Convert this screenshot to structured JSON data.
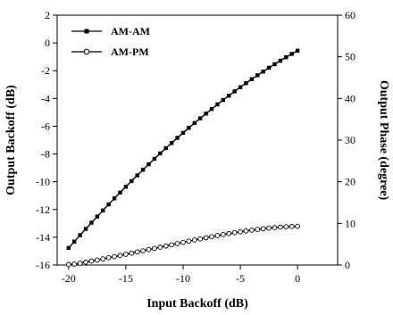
{
  "chart_data": {
    "type": "line",
    "xlabel": "Input Backoff (dB)",
    "ylabel": "Output Backoff (dB)",
    "y2label": "Output Phase (degree)",
    "xlim": [
      -21,
      3.5
    ],
    "ylim": [
      -16,
      2
    ],
    "y2lim": [
      0,
      60
    ],
    "xticks": [
      -20,
      -15,
      -10,
      -5,
      0
    ],
    "yticks": [
      2,
      0,
      -2,
      -4,
      -6,
      -8,
      -10,
      -12,
      -14,
      -16
    ],
    "y2ticks": [
      60,
      50,
      40,
      30,
      20,
      10,
      0
    ],
    "legend_position": "top-left",
    "grid": false,
    "series": [
      {
        "name": "AM-AM",
        "axis": "left",
        "marker": "filled-square",
        "x": [
          -20,
          -19.5,
          -19,
          -18.5,
          -18,
          -17.5,
          -17,
          -16.5,
          -16,
          -15.5,
          -15,
          -14.5,
          -14,
          -13.5,
          -13,
          -12.5,
          -12,
          -11.5,
          -11,
          -10.5,
          -10,
          -9.5,
          -9,
          -8.5,
          -8,
          -7.5,
          -7,
          -6.5,
          -6,
          -5.5,
          -5,
          -4.5,
          -4,
          -3.5,
          -3,
          -2.5,
          -2,
          -1.5,
          -1,
          -0.5,
          0
        ],
        "y": [
          -14.77,
          -14.31,
          -13.85,
          -13.4,
          -12.95,
          -12.51,
          -12.07,
          -11.63,
          -11.2,
          -10.78,
          -10.36,
          -9.95,
          -9.54,
          -9.14,
          -8.74,
          -8.35,
          -7.96,
          -7.58,
          -7.21,
          -6.84,
          -6.48,
          -6.12,
          -5.77,
          -5.43,
          -5.09,
          -4.76,
          -4.43,
          -4.11,
          -3.8,
          -3.49,
          -3.19,
          -2.9,
          -2.61,
          -2.33,
          -2.06,
          -1.79,
          -1.53,
          -1.28,
          -1.03,
          -0.79,
          -0.56
        ]
      },
      {
        "name": "AM-PM",
        "axis": "right",
        "marker": "open-circle",
        "x": [
          -20,
          -19.5,
          -19,
          -18.5,
          -18,
          -17.5,
          -17,
          -16.5,
          -16,
          -15.5,
          -15,
          -14.5,
          -14,
          -13.5,
          -13,
          -12.5,
          -12,
          -11.5,
          -11,
          -10.5,
          -10,
          -9.5,
          -9,
          -8.5,
          -8,
          -7.5,
          -7,
          -6.5,
          -6,
          -5.5,
          -5,
          -4.5,
          -4,
          -3.5,
          -3,
          -2.5,
          -2,
          -1.5,
          -1,
          -0.5,
          0
        ],
        "y": [
          0.1,
          0.22,
          0.44,
          0.69,
          0.95,
          1.21,
          1.48,
          1.75,
          2.02,
          2.3,
          2.58,
          2.85,
          3.14,
          3.42,
          3.71,
          3.99,
          4.28,
          4.57,
          4.86,
          5.15,
          5.44,
          5.74,
          6.01,
          6.28,
          6.55,
          6.81,
          7.07,
          7.31,
          7.55,
          7.78,
          7.99,
          8.2,
          8.39,
          8.56,
          8.72,
          8.87,
          8.99,
          9.1,
          9.19,
          9.26,
          9.3
        ]
      }
    ]
  }
}
